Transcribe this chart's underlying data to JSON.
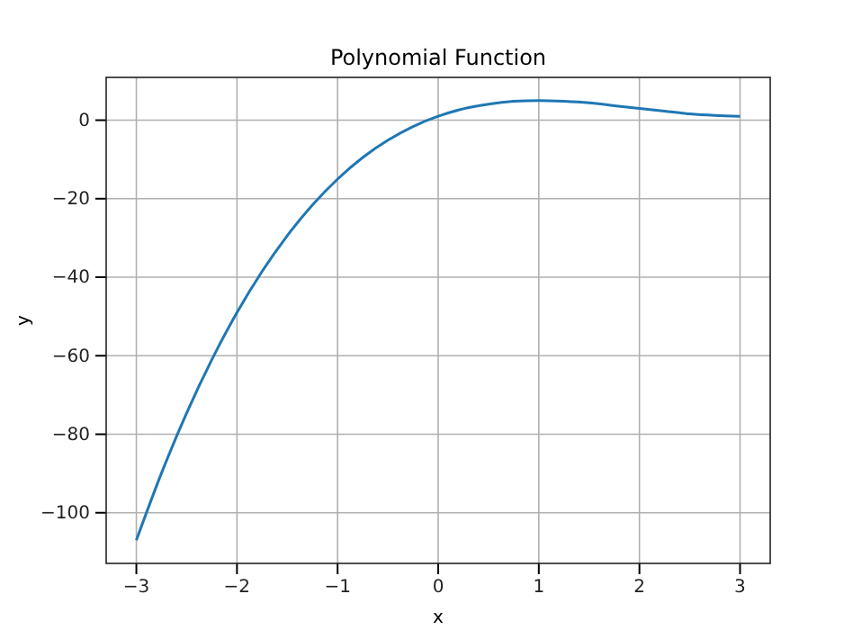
{
  "chart_data": {
    "type": "line",
    "title": "Polynomial Function",
    "xlabel": "x",
    "ylabel": "y",
    "x": [
      -3,
      -2.75,
      -2.5,
      -2.25,
      -2,
      -1.75,
      -1.5,
      -1.25,
      -1,
      -0.75,
      -0.5,
      -0.25,
      0,
      0.25,
      0.5,
      0.75,
      1,
      1.25,
      1.5,
      1.75,
      2,
      2.25,
      2.5,
      2.75,
      3
    ],
    "series": [
      {
        "color": "#1f77b4",
        "values": [
          -107,
          -89.9,
          -74.6,
          -61,
          -49,
          -38.5,
          -29.4,
          -21.6,
          -15,
          -9.5,
          -5.1,
          -1.6,
          1,
          2.9,
          4.1,
          4.8,
          5,
          4.8,
          4.4,
          3.7,
          3,
          2.3,
          1.6,
          1.2,
          1
        ]
      }
    ],
    "xlim": [
      -3.3,
      3.3
    ],
    "ylim": [
      -112.9,
      10.9
    ],
    "xticks": [
      {
        "value": -3,
        "label": "−3"
      },
      {
        "value": -2,
        "label": "−2"
      },
      {
        "value": -1,
        "label": "−1"
      },
      0,
      1,
      2,
      3
    ],
    "yticks": [
      {
        "value": -100,
        "label": "−100"
      },
      {
        "value": -80,
        "label": "−80"
      },
      {
        "value": -60,
        "label": "−60"
      },
      {
        "value": -40,
        "label": "−40"
      },
      {
        "value": -20,
        "label": "−20"
      },
      0
    ],
    "grid": true,
    "marker": "none",
    "line_style": "solid"
  }
}
